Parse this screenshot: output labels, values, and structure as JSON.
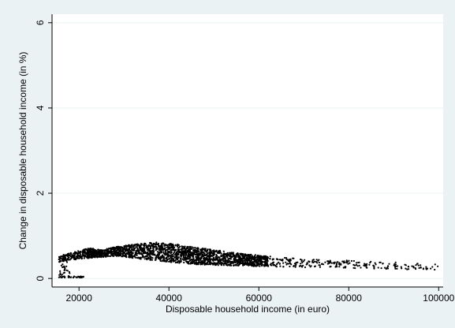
{
  "chart_data": {
    "type": "scatter",
    "title": "",
    "xlabel": "Disposable household income (in euro)",
    "ylabel": "Change in disposable household income (in %)",
    "xlim": [
      14000,
      101000
    ],
    "ylim": [
      -0.2,
      6.2
    ],
    "xticks": [
      20000,
      40000,
      60000,
      80000,
      100000
    ],
    "xtick_labels": [
      "20000",
      "40000",
      "60000",
      "80000",
      "100000"
    ],
    "yticks": [
      0,
      2,
      4,
      6
    ],
    "ytick_labels": [
      "0",
      "2",
      "4",
      "6"
    ],
    "grid": "horizontal",
    "legend": "none",
    "marker_color": "#000000",
    "plot_background": "#ffffff",
    "page_background": "#eaf2f3",
    "band_upper": [
      {
        "x": 15500,
        "y": 0.52
      },
      {
        "x": 18000,
        "y": 0.6
      },
      {
        "x": 20000,
        "y": 0.66
      },
      {
        "x": 22500,
        "y": 0.71
      },
      {
        "x": 25000,
        "y": 0.67
      },
      {
        "x": 28000,
        "y": 0.74
      },
      {
        "x": 32000,
        "y": 0.8
      },
      {
        "x": 37000,
        "y": 0.85
      },
      {
        "x": 42000,
        "y": 0.8
      },
      {
        "x": 48000,
        "y": 0.7
      },
      {
        "x": 55000,
        "y": 0.6
      },
      {
        "x": 62000,
        "y": 0.52
      },
      {
        "x": 70000,
        "y": 0.46
      },
      {
        "x": 80000,
        "y": 0.42
      },
      {
        "x": 90000,
        "y": 0.38
      },
      {
        "x": 100000,
        "y": 0.34
      }
    ],
    "band_lower": [
      {
        "x": 15500,
        "y": 0.38
      },
      {
        "x": 18000,
        "y": 0.42
      },
      {
        "x": 20000,
        "y": 0.46
      },
      {
        "x": 22500,
        "y": 0.48
      },
      {
        "x": 25000,
        "y": 0.5
      },
      {
        "x": 28000,
        "y": 0.52
      },
      {
        "x": 32000,
        "y": 0.48
      },
      {
        "x": 37000,
        "y": 0.42
      },
      {
        "x": 42000,
        "y": 0.36
      },
      {
        "x": 48000,
        "y": 0.32
      },
      {
        "x": 55000,
        "y": 0.3
      },
      {
        "x": 62000,
        "y": 0.28
      },
      {
        "x": 70000,
        "y": 0.26
      },
      {
        "x": 80000,
        "y": 0.24
      },
      {
        "x": 90000,
        "y": 0.22
      },
      {
        "x": 100000,
        "y": 0.2
      }
    ],
    "zero_cluster": {
      "x_range": [
        15500,
        21000
      ],
      "y": 0.02
    },
    "point_count": 2600
  }
}
